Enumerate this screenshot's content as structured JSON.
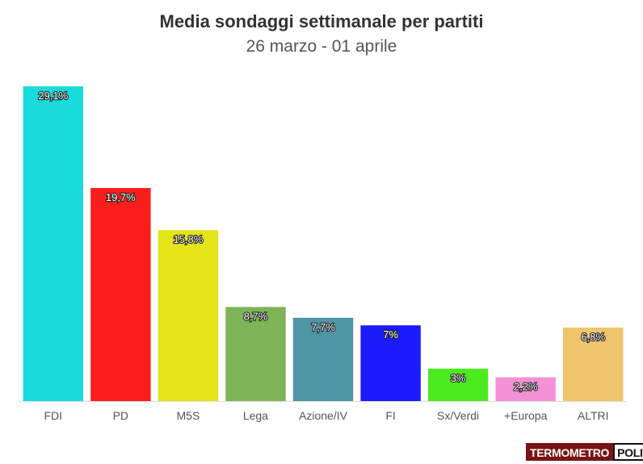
{
  "header": {
    "title": "Media sondaggi settimanale per partiti",
    "subtitle": "26 marzo - 01 aprile"
  },
  "brand": {
    "logo_left": "TERMOMETRO",
    "logo_right": "POLITICO"
  },
  "chart_data": {
    "type": "bar",
    "title": "Media sondaggi settimanale per partiti",
    "subtitle": "26 marzo - 01 aprile",
    "categories": [
      "FDI",
      "PD",
      "M5S",
      "Lega",
      "Azione/IV",
      "FI",
      "Sx/Verdi",
      "+Europa",
      "ALTRI"
    ],
    "values": [
      29.1,
      19.7,
      15.8,
      8.7,
      7.7,
      7,
      3,
      2.2,
      6.8
    ],
    "labels": [
      "29,1%",
      "19,7%",
      "15,8%",
      "8,7%",
      "7,7%",
      "7%",
      "3%",
      "2,2%",
      "6,8%"
    ],
    "colors": [
      "#1adbdb",
      "#fb1c1c",
      "#e4e418",
      "#7db456",
      "#4f95a4",
      "#1a1afb",
      "#4ceb1f",
      "#f491d6",
      "#f0c46c"
    ],
    "ylim": [
      0,
      29.1
    ],
    "grid": false,
    "legend": "none"
  }
}
